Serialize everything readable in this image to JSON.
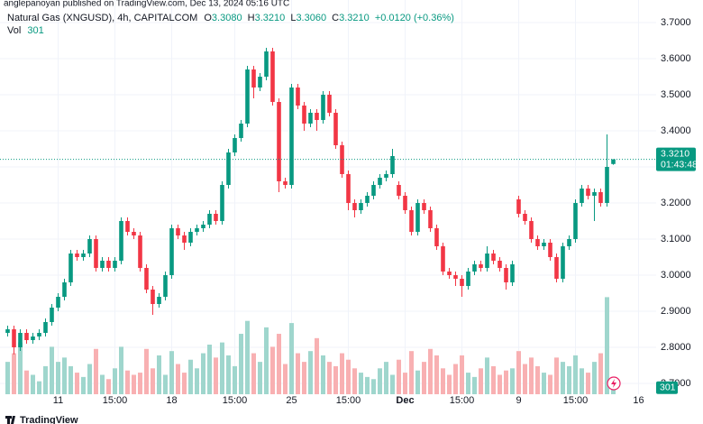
{
  "header": {
    "publisher": "anglepanoyan published on TradingView.com, Dec 13, 2024 05:16 UTC",
    "symbol": "Natural Gas (XNGUSD), 4h, CAPITALCOM",
    "ohlc": [
      {
        "key": "O",
        "value": "3.3080"
      },
      {
        "key": "H",
        "value": "3.3210"
      },
      {
        "key": "L",
        "value": "3.3060"
      },
      {
        "key": "C",
        "value": "3.3210"
      }
    ],
    "change": "+0.0120 (+0.36%)",
    "volume_key": "Vol"
  },
  "footer": {
    "brand": "TradingView"
  },
  "chart_data": {
    "type": "candlestick",
    "categories": [
      null,
      null,
      null,
      null,
      null,
      null,
      null,
      null,
      "11",
      null,
      null,
      null,
      null,
      null,
      null,
      null,
      null,
      "15:00",
      null,
      null,
      null,
      null,
      null,
      null,
      null,
      null,
      "18",
      null,
      null,
      null,
      null,
      null,
      null,
      null,
      null,
      null,
      "15:00",
      null,
      null,
      null,
      null,
      null,
      null,
      null,
      null,
      "25",
      null,
      null,
      null,
      null,
      null,
      null,
      null,
      null,
      "15:00",
      null,
      null,
      null,
      null,
      null,
      null,
      null,
      null,
      "Dec",
      null,
      null,
      null,
      null,
      null,
      null,
      null,
      null,
      "15:00",
      null,
      null,
      null,
      null,
      null,
      null,
      null,
      null,
      "9",
      null,
      null,
      null,
      null,
      null,
      null,
      null,
      null,
      "15:00",
      null,
      null,
      null,
      null,
      null,
      null,
      null,
      null,
      null,
      "16"
    ],
    "open": [
      2.84,
      2.85,
      2.8,
      2.84,
      2.82,
      2.83,
      2.84,
      2.87,
      2.91,
      2.94,
      2.98,
      3.06,
      3.05,
      3.06,
      3.1,
      3.02,
      3.04,
      3.02,
      3.04,
      3.15,
      3.12,
      3.11,
      3.02,
      2.96,
      2.92,
      2.94,
      3.0,
      3.13,
      3.11,
      3.09,
      3.12,
      3.13,
      3.14,
      3.17,
      3.15,
      3.25,
      3.34,
      3.38,
      3.42,
      3.57,
      3.52,
      3.55,
      3.62,
      3.48,
      3.26,
      3.25,
      3.52,
      3.47,
      3.42,
      3.45,
      3.43,
      3.5,
      3.45,
      3.36,
      3.28,
      3.2,
      3.18,
      3.2,
      3.22,
      3.25,
      3.27,
      3.28,
      3.25,
      3.22,
      3.18,
      3.12,
      3.2,
      3.18,
      3.13,
      3.08,
      3.01,
      3.0,
      2.99,
      2.97,
      3.01,
      3.03,
      3.02,
      3.06,
      3.04,
      3.02,
      2.98,
      3.21,
      3.17,
      3.15,
      3.1,
      3.08,
      3.09,
      3.05,
      2.99,
      3.08,
      3.1,
      3.2,
      3.24,
      3.22,
      3.23,
      3.2,
      3.308,
      null,
      null,
      null,
      null
    ],
    "high": [
      2.86,
      2.86,
      2.85,
      2.85,
      2.84,
      2.85,
      2.88,
      2.92,
      2.95,
      2.99,
      3.07,
      3.07,
      3.07,
      3.11,
      3.11,
      3.05,
      3.05,
      3.05,
      3.16,
      3.16,
      3.13,
      3.12,
      3.03,
      2.97,
      2.95,
      3.01,
      3.14,
      3.14,
      3.12,
      3.13,
      3.14,
      3.15,
      3.18,
      3.18,
      3.26,
      3.35,
      3.39,
      3.43,
      3.58,
      3.58,
      3.56,
      3.63,
      3.63,
      3.49,
      3.27,
      3.53,
      3.53,
      3.48,
      3.46,
      3.46,
      3.51,
      3.51,
      3.46,
      3.37,
      3.29,
      3.21,
      3.21,
      3.23,
      3.26,
      3.28,
      3.29,
      3.35,
      3.26,
      3.23,
      3.19,
      3.21,
      3.21,
      3.19,
      3.14,
      3.09,
      3.02,
      3.01,
      3.0,
      3.02,
      3.04,
      3.04,
      3.08,
      3.07,
      3.05,
      3.03,
      3.04,
      3.22,
      3.18,
      3.16,
      3.11,
      3.1,
      3.1,
      3.06,
      3.09,
      3.11,
      3.21,
      3.25,
      3.25,
      3.24,
      3.24,
      3.39,
      3.321,
      null,
      null,
      null,
      null
    ],
    "low": [
      2.83,
      2.78,
      2.79,
      2.81,
      2.81,
      2.82,
      2.83,
      2.86,
      2.9,
      2.93,
      2.97,
      3.04,
      3.04,
      3.05,
      3.01,
      3.01,
      3.01,
      3.01,
      3.03,
      3.11,
      3.1,
      3.01,
      2.95,
      2.89,
      2.91,
      2.93,
      2.99,
      3.1,
      3.07,
      3.08,
      3.11,
      3.12,
      3.13,
      3.14,
      3.14,
      3.24,
      3.33,
      3.37,
      3.41,
      3.49,
      3.51,
      3.54,
      3.47,
      3.23,
      3.24,
      3.24,
      3.46,
      3.4,
      3.41,
      3.4,
      3.42,
      3.44,
      3.35,
      3.27,
      3.18,
      3.16,
      3.17,
      3.19,
      3.21,
      3.24,
      3.26,
      3.27,
      3.21,
      3.17,
      3.11,
      3.11,
      3.17,
      3.12,
      3.07,
      3.0,
      2.99,
      2.97,
      2.94,
      2.96,
      3.0,
      3.01,
      3.01,
      3.03,
      3.01,
      2.96,
      2.97,
      3.16,
      3.14,
      3.09,
      3.07,
      3.07,
      3.04,
      2.98,
      2.98,
      3.07,
      3.09,
      3.19,
      3.21,
      3.15,
      3.19,
      3.19,
      3.306,
      null,
      null,
      null,
      null
    ],
    "close": [
      2.85,
      2.8,
      2.84,
      2.82,
      2.83,
      2.84,
      2.87,
      2.91,
      2.94,
      2.98,
      3.06,
      3.05,
      3.06,
      3.1,
      3.02,
      3.04,
      3.02,
      3.04,
      3.15,
      3.12,
      3.11,
      3.02,
      2.96,
      2.92,
      2.94,
      3.0,
      3.13,
      3.11,
      3.09,
      3.12,
      3.13,
      3.14,
      3.17,
      3.15,
      3.25,
      3.34,
      3.38,
      3.42,
      3.57,
      3.52,
      3.55,
      3.62,
      3.48,
      3.26,
      3.25,
      3.52,
      3.47,
      3.42,
      3.45,
      3.43,
      3.5,
      3.45,
      3.36,
      3.28,
      3.2,
      3.18,
      3.2,
      3.22,
      3.25,
      3.27,
      3.28,
      3.33,
      3.22,
      3.18,
      3.12,
      3.2,
      3.18,
      3.13,
      3.08,
      3.01,
      3.0,
      2.99,
      2.97,
      3.01,
      3.03,
      3.02,
      3.06,
      3.04,
      3.02,
      2.98,
      3.03,
      3.17,
      3.15,
      3.1,
      3.08,
      3.09,
      3.05,
      2.99,
      3.08,
      3.1,
      3.2,
      3.24,
      3.22,
      3.23,
      3.2,
      3.3,
      3.321,
      null,
      null,
      null,
      null
    ],
    "volume": [
      1500,
      1900,
      2400,
      1100,
      900,
      600,
      1300,
      2200,
      1500,
      1700,
      1300,
      1000,
      800,
      1400,
      2100,
      900,
      700,
      1200,
      2200,
      1100,
      900,
      1000,
      2100,
      1200,
      1800,
      900,
      2000,
      1400,
      1000,
      1600,
      1200,
      1900,
      2300,
      1700,
      2400,
      1800,
      1300,
      2800,
      3400,
      1900,
      1500,
      3100,
      2200,
      2800,
      1400,
      3300,
      1900,
      1500,
      2000,
      2600,
      1800,
      1500,
      1300,
      1900,
      1600,
      1200,
      1000,
      800,
      700,
      1200,
      1500,
      900,
      1600,
      1000,
      2000,
      1100,
      1500,
      2100,
      1800,
      1200,
      900,
      1400,
      1800,
      1000,
      800,
      1200,
      1700,
      1300,
      900,
      1100,
      1200,
      2000,
      1400,
      1700,
      1300,
      1000,
      900,
      1700,
      1500,
      1300,
      1800,
      1200,
      1000,
      1500,
      1900,
      4500,
      301,
      null,
      null,
      null,
      null
    ],
    "last_price_label": "3.3210",
    "countdown": "01:43:48",
    "ylim": [
      2.67,
      3.7625
    ],
    "vlim": [
      0,
      4600
    ],
    "yticks": [
      {
        "value": 3.7,
        "label": "3.7000"
      },
      {
        "value": 3.6,
        "label": "3.6000"
      },
      {
        "value": 3.5,
        "label": "3.5000"
      },
      {
        "value": 3.4,
        "label": "3.4000"
      },
      {
        "value": 3.3,
        "label": "3.3000"
      },
      {
        "value": 3.2,
        "label": "3.2000"
      },
      {
        "value": 3.1,
        "label": "3.1000"
      },
      {
        "value": 3.0,
        "label": "3.0000"
      },
      {
        "value": 2.9,
        "label": "2.9000"
      },
      {
        "value": 2.8,
        "label": "2.8000"
      },
      {
        "value": 2.7,
        "label": "2.7000"
      }
    ],
    "grid": true,
    "up_color": "#089981",
    "down_color": "#f23645",
    "volume_up_color": "#9fd6cd",
    "volume_down_color": "#f8b0b2"
  }
}
